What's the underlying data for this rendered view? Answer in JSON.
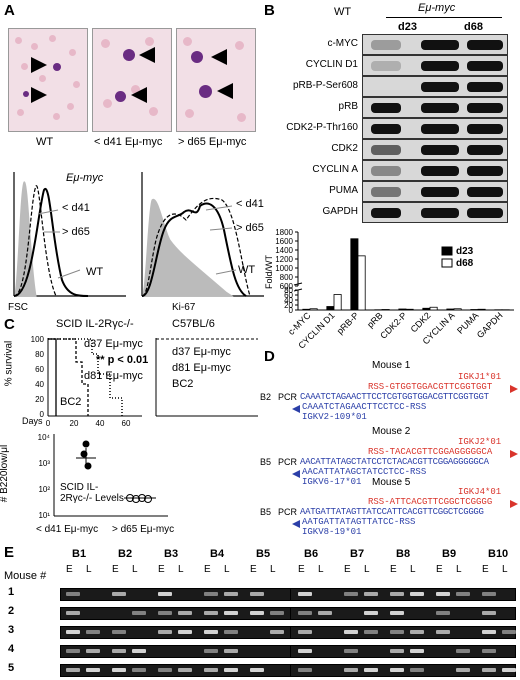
{
  "panels": {
    "A": "A",
    "B": "B",
    "C": "C",
    "D": "D",
    "E": "E"
  },
  "panelA": {
    "micro_labels": [
      "WT",
      "< d41 Eμ-myc",
      "> d65 Eμ-myc"
    ],
    "fsc": {
      "title": "Eμ-myc",
      "l1": "< d41",
      "l2": "> d65",
      "wt": "WT",
      "axis": "FSC"
    },
    "ki67": {
      "l1": "< d41",
      "l2": "> d65",
      "wt": "WT",
      "axis": "Ki-67"
    }
  },
  "panelB": {
    "wt": "WT",
    "emu": "Eμ-myc",
    "d23": "d23",
    "d68": "d68",
    "rows": [
      "c-MYC",
      "CYCLIN D1",
      "pRB-P-Ser608",
      "pRB",
      "CDK2-P-Thr160",
      "CDK2",
      "CYCLIN A",
      "PUMA",
      "GAPDH"
    ]
  },
  "chart_data": {
    "type": "bar",
    "ylabel": "Fold/WT",
    "categories": [
      "c-MYC",
      "CYCLIN D1",
      "pRB-P",
      "pRB",
      "CDK2-P",
      "CDK2",
      "CYCLIN A",
      "PUMA",
      "GAPDH"
    ],
    "series": [
      {
        "name": "d23",
        "values": [
          3,
          14,
          1650,
          1,
          4,
          7,
          4,
          2,
          1
        ]
      },
      {
        "name": "d68",
        "values": [
          5,
          62,
          1270,
          2,
          3,
          11,
          5,
          3,
          1
        ]
      }
    ],
    "yticks": [
      0,
      20,
      40,
      60,
      80,
      600,
      800,
      1000,
      1200,
      1400,
      1600,
      1800
    ],
    "broken_axis": true,
    "legend_position": "upper-right"
  },
  "panelC": {
    "left_title": "SCID IL-2Rγc-/-",
    "right_title": "C57BL/6",
    "ylabel": "% survival",
    "yticks": [
      "100",
      "80",
      "60",
      "40",
      "20",
      "0"
    ],
    "xticks": [
      "0",
      "20",
      "40",
      "60"
    ],
    "xlabel": "Days",
    "curves_left": [
      "d37 Eμ-myc",
      "d81 Eμ-myc",
      "BC2"
    ],
    "stats": "** p < 0.01",
    "curves_right": [
      "d37 Eμ-myc",
      "d81 Eμ-myc",
      "BC2"
    ],
    "scatter": {
      "ylabel": "# B220low/μl",
      "yticks": [
        "10⁴",
        "10³",
        "10²",
        "10¹"
      ],
      "annotation": "SCID IL-2Rγc-/- Levels",
      "xlabels": [
        "< d41 Eμ-myc",
        "> d65 Eμ-myc"
      ],
      "points_group1": [
        2200.0,
        900,
        5000.0
      ],
      "points_group2": [
        40,
        38,
        42,
        36
      ]
    }
  },
  "panelD": {
    "mice": [
      {
        "title": "Mouse 1",
        "igk": "IGKJ1*01",
        "rss": "RSS-GTGGTGGACGTTCGGTGGT",
        "clone": "B2",
        "pcr": "PCR",
        "seq1": "CAAATCTAGAACTTCCTCGTGGTGGACGTTCGGTGGT",
        "seq2": "CAAATCTAGAACTTCCTCC-RSS",
        "igkv": "IGKV2-109*01"
      },
      {
        "title": "Mouse 2",
        "igk": "IGKJ2*01",
        "rss": "RSS-TACACGTTCGGAGGGGGCA",
        "clone": "B5",
        "pcr": "PCR",
        "seq1": "AACATTATAGCTATCCTCTACACGTTCGGAGGGGGCA",
        "seq2": "AACATTATAGCTATCCTCC-RSS",
        "igkv": "IGKV6-17*01"
      },
      {
        "title": "Mouse 5",
        "igk": "IGKJ4*01",
        "rss": "RSS-ATTCACGTTCGGCTCGGGG",
        "clone": "B5",
        "pcr": "PCR",
        "seq1": "AATGATTATAGTTATCCATTCACGTTCGGCTCGGGG",
        "seq2": "AATGATTATAGTTATCC-RSS",
        "igkv": "IGKV8-19*01"
      }
    ]
  },
  "panelE": {
    "mouse_header": "Mouse #",
    "groups": [
      "B1",
      "B2",
      "B3",
      "B4",
      "B5",
      "B6",
      "B7",
      "B8",
      "B9",
      "B10"
    ],
    "lanes": [
      "E",
      "L"
    ],
    "mice": [
      "1",
      "2",
      "3",
      "4",
      "5"
    ]
  }
}
